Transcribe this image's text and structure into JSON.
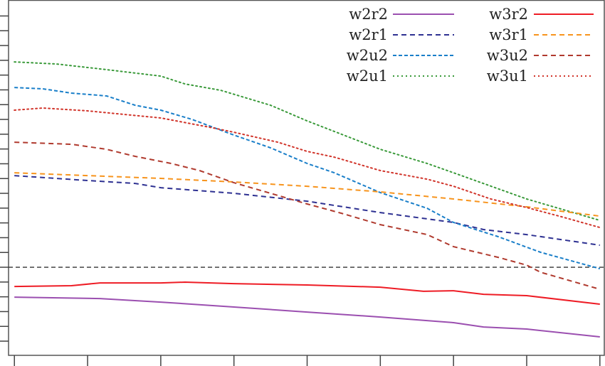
{
  "chart_data": {
    "type": "line",
    "title": "",
    "xlabel": "",
    "ylabel": "",
    "xlim": [
      -0.08,
      8.07
    ],
    "ylim": [
      -5.96,
      18.08
    ],
    "x_ticks": [
      0,
      1,
      2,
      3,
      4,
      5,
      6,
      7,
      8
    ],
    "y_ticks": [
      -5,
      -4,
      -3,
      -2,
      -1,
      0,
      1,
      2,
      3,
      4,
      5,
      6,
      7,
      8,
      9,
      10,
      11,
      12,
      13,
      14,
      15,
      16,
      17
    ],
    "tick_labels_shown": false,
    "reference_line": {
      "y": 0,
      "style": "dashed",
      "color": "#333333"
    },
    "legend_placement": "top-right",
    "series": [
      {
        "name": "w2r2",
        "color": "#9b4fb0",
        "style": "solid",
        "x": [
          0,
          1.17,
          2,
          3,
          4,
          5,
          6,
          6.41,
          7,
          8
        ],
        "y": [
          -2.02,
          -2.12,
          -2.36,
          -2.69,
          -3.03,
          -3.37,
          -3.75,
          -4.04,
          -4.18,
          -4.71
        ]
      },
      {
        "name": "w2r1",
        "color": "#2e3192",
        "style": "dashed",
        "x": [
          0,
          1,
          1.65,
          2,
          3,
          4,
          5,
          6,
          6.41,
          7,
          8
        ],
        "y": [
          6.2,
          5.87,
          5.67,
          5.38,
          5.0,
          4.47,
          3.7,
          3.03,
          2.55,
          2.21,
          1.49
        ]
      },
      {
        "name": "w2u2",
        "color": "#1a7fc9",
        "style": "dashed-fine",
        "x": [
          0,
          0.39,
          0.78,
          1.26,
          1.65,
          2,
          2.43,
          3,
          3.5,
          4,
          4.37,
          5,
          5.64,
          6,
          6.61,
          7.19,
          8
        ],
        "y": [
          12.16,
          12.07,
          11.78,
          11.59,
          10.96,
          10.63,
          10.0,
          8.94,
          8.08,
          7.02,
          6.39,
          5.05,
          3.99,
          3.03,
          2.07,
          1.01,
          -0.1
        ]
      },
      {
        "name": "w2u1",
        "color": "#3a9a3a",
        "style": "dotted",
        "x": [
          0,
          0.58,
          1.26,
          2,
          2.33,
          2.82,
          3.5,
          4,
          5,
          5.64,
          6,
          7,
          8
        ],
        "y": [
          13.89,
          13.75,
          13.37,
          12.93,
          12.4,
          11.97,
          10.96,
          9.9,
          7.98,
          7.02,
          6.39,
          4.62,
          3.17
        ]
      },
      {
        "name": "w3r2",
        "color": "#ee1c25",
        "style": "solid",
        "x": [
          0,
          0.78,
          1.17,
          2,
          2.33,
          3,
          4,
          5,
          5.59,
          6,
          6.41,
          7,
          8
        ],
        "y": [
          -1.3,
          -1.25,
          -1.06,
          -1.06,
          -1.01,
          -1.11,
          -1.2,
          -1.35,
          -1.63,
          -1.59,
          -1.83,
          -1.92,
          -2.5
        ]
      },
      {
        "name": "w3r1",
        "color": "#f7941d",
        "style": "dashed",
        "x": [
          0,
          1,
          2,
          3,
          4,
          5,
          6,
          7,
          8
        ],
        "y": [
          6.39,
          6.2,
          6.01,
          5.77,
          5.48,
          5.1,
          4.62,
          4.09,
          3.46
        ]
      },
      {
        "name": "w3u2",
        "color": "#b03a2e",
        "style": "dashed",
        "x": [
          0,
          0.78,
          1.26,
          1.65,
          2.14,
          2.53,
          3,
          3.5,
          4,
          4.47,
          5,
          5.64,
          6,
          6.61,
          7,
          7.19,
          8
        ],
        "y": [
          8.46,
          8.32,
          7.98,
          7.5,
          7.02,
          6.54,
          5.72,
          5.0,
          4.28,
          3.65,
          2.88,
          2.21,
          1.39,
          0.67,
          0.14,
          -0.34,
          -1.49
        ]
      },
      {
        "name": "w3u1",
        "color": "#d1352b",
        "style": "dotted",
        "x": [
          0,
          0.39,
          1,
          2,
          2.72,
          3,
          3.6,
          4,
          4.37,
          5,
          5.64,
          6,
          6.51,
          7,
          7.48,
          8
        ],
        "y": [
          10.63,
          10.77,
          10.58,
          10.1,
          9.42,
          9.13,
          8.46,
          7.84,
          7.45,
          6.54,
          5.96,
          5.48,
          4.62,
          4.04,
          3.41,
          2.69
        ]
      }
    ]
  }
}
